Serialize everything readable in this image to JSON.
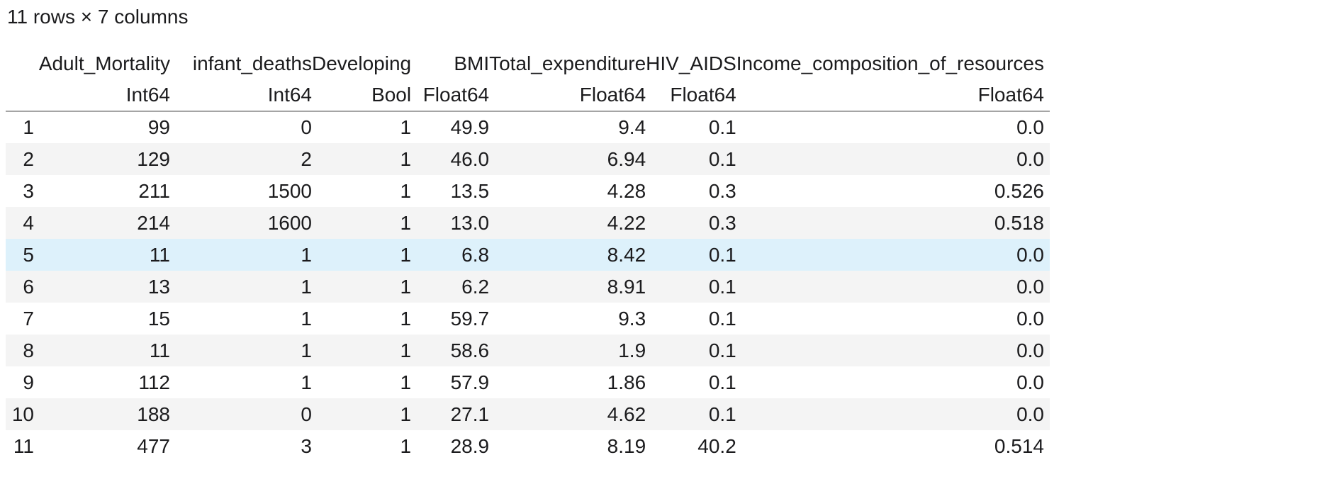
{
  "summary": "11 rows × 7 columns",
  "table": {
    "index_header": "",
    "columns": [
      {
        "name": "Adult_Mortality",
        "type": "Int64"
      },
      {
        "name": "infant_deaths",
        "type": "Int64"
      },
      {
        "name": "Developing",
        "type": "Bool"
      },
      {
        "name": "BMI",
        "type": "Float64"
      },
      {
        "name": "Total_expenditure",
        "type": "Float64"
      },
      {
        "name": "HIV_AIDS",
        "type": "Float64"
      },
      {
        "name": "Income_composition_of_resources",
        "type": "Float64"
      }
    ],
    "rows": [
      {
        "index": "1",
        "cells": [
          "99",
          "0",
          "1",
          "49.9",
          "9.4",
          "0.1",
          "0.0"
        ]
      },
      {
        "index": "2",
        "cells": [
          "129",
          "2",
          "1",
          "46.0",
          "6.94",
          "0.1",
          "0.0"
        ]
      },
      {
        "index": "3",
        "cells": [
          "211",
          "1500",
          "1",
          "13.5",
          "4.28",
          "0.3",
          "0.526"
        ]
      },
      {
        "index": "4",
        "cells": [
          "214",
          "1600",
          "1",
          "13.0",
          "4.22",
          "0.3",
          "0.518"
        ]
      },
      {
        "index": "5",
        "cells": [
          "11",
          "1",
          "1",
          "6.8",
          "8.42",
          "0.1",
          "0.0"
        ]
      },
      {
        "index": "6",
        "cells": [
          "13",
          "1",
          "1",
          "6.2",
          "8.91",
          "0.1",
          "0.0"
        ]
      },
      {
        "index": "7",
        "cells": [
          "15",
          "1",
          "1",
          "59.7",
          "9.3",
          "0.1",
          "0.0"
        ]
      },
      {
        "index": "8",
        "cells": [
          "11",
          "1",
          "1",
          "58.6",
          "1.9",
          "0.1",
          "0.0"
        ]
      },
      {
        "index": "9",
        "cells": [
          "112",
          "1",
          "1",
          "57.9",
          "1.86",
          "0.1",
          "0.0"
        ]
      },
      {
        "index": "10",
        "cells": [
          "188",
          "0",
          "1",
          "27.1",
          "4.62",
          "0.1",
          "0.0"
        ]
      },
      {
        "index": "11",
        "cells": [
          "477",
          "3",
          "1",
          "28.9",
          "8.19",
          "40.2",
          "0.514"
        ]
      }
    ],
    "highlighted_row": 5
  },
  "colors": {
    "stripe": "#f4f4f4",
    "highlight": "#ddf1fb",
    "rule": "#a5a5a5",
    "text": "#1b1b1d"
  }
}
